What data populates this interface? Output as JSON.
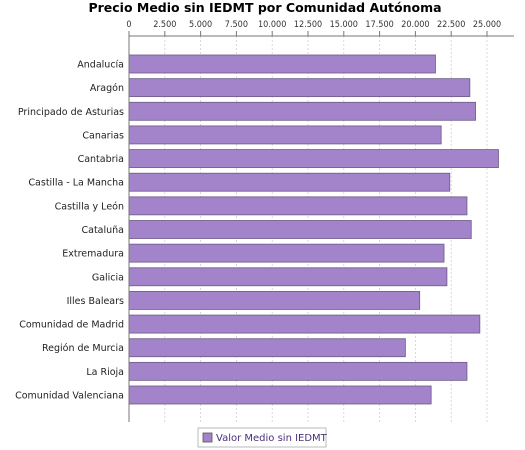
{
  "chart_data": {
    "type": "bar",
    "orientation": "horizontal",
    "title": "Precio Medio sin IEDMT por Comunidad Autónoma",
    "xlabel": "",
    "ylabel": "",
    "xlim": [
      0,
      27500
    ],
    "ticks": [
      "0",
      "2.500",
      "5.000",
      "7.500",
      "10.000",
      "12.500",
      "15.000",
      "17.500",
      "20.000",
      "22.500",
      "25.000"
    ],
    "tick_values": [
      0,
      2500,
      5000,
      7500,
      10000,
      12500,
      15000,
      17500,
      20000,
      22500,
      25000
    ],
    "categories": [
      "Andalucía",
      "Aragón",
      "Principado de Asturias",
      "Canarias",
      "Cantabria",
      "Castilla - La Mancha",
      "Castilla y León",
      "Cataluña",
      "Extremadura",
      "Galicia",
      "Illes Balears",
      "Comunidad de Madrid",
      "Región de Murcia",
      "La Rioja",
      "Comunidad Valenciana"
    ],
    "series": [
      {
        "name": "Valor Medio sin IEDMT",
        "color": "#a383c9",
        "values": [
          21400,
          23800,
          24200,
          21800,
          25800,
          22400,
          23600,
          23900,
          22000,
          22200,
          20300,
          24500,
          19300,
          23600,
          21100
        ]
      }
    ],
    "grid": true,
    "legend": "bottom"
  }
}
